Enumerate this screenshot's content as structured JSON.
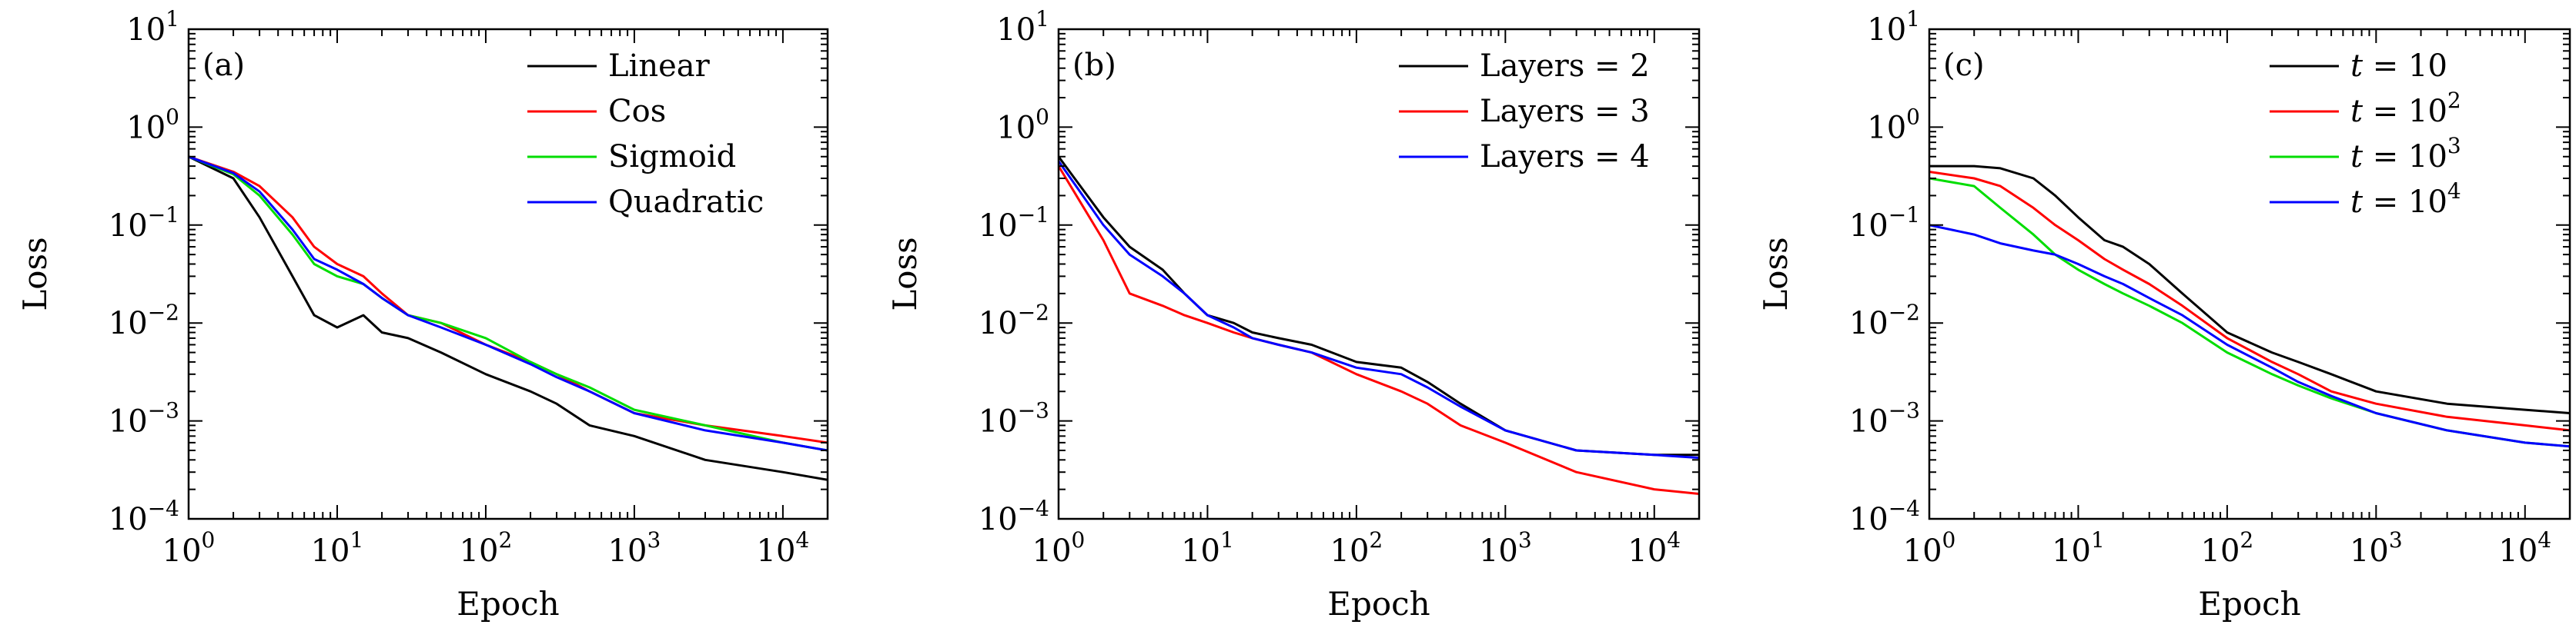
{
  "figure": {
    "panels_count": 3
  },
  "chart_data": [
    {
      "type": "line",
      "panel_label": "(a)",
      "xlabel": "Epoch",
      "ylabel": "Loss",
      "xscale": "log",
      "yscale": "log",
      "xlim": [
        1,
        20000
      ],
      "ylim": [
        0.0001,
        10
      ],
      "x_ticks": [
        {
          "base": "10",
          "exp": "0",
          "value": 1
        },
        {
          "base": "10",
          "exp": "1",
          "value": 10
        },
        {
          "base": "10",
          "exp": "2",
          "value": 100
        },
        {
          "base": "10",
          "exp": "3",
          "value": 1000
        },
        {
          "base": "10",
          "exp": "4",
          "value": 10000
        }
      ],
      "y_ticks": [
        {
          "base": "10",
          "exp": "−4",
          "value": 0.0001
        },
        {
          "base": "10",
          "exp": "−3",
          "value": 0.001
        },
        {
          "base": "10",
          "exp": "−2",
          "value": 0.01
        },
        {
          "base": "10",
          "exp": "−1",
          "value": 0.1
        },
        {
          "base": "10",
          "exp": "0",
          "value": 1
        },
        {
          "base": "10",
          "exp": "1",
          "value": 10
        }
      ],
      "legend_position": "top-right",
      "series": [
        {
          "name": "Linear",
          "color": "#000000",
          "x": [
            1,
            2,
            3,
            5,
            7,
            10,
            15,
            20,
            30,
            50,
            100,
            200,
            300,
            500,
            1000,
            3000,
            10000,
            20000
          ],
          "y": [
            0.5,
            0.3,
            0.12,
            0.03,
            0.012,
            0.009,
            0.012,
            0.008,
            0.007,
            0.005,
            0.003,
            0.002,
            0.0015,
            0.0009,
            0.0007,
            0.0004,
            0.0003,
            0.00025
          ]
        },
        {
          "name": "Cos",
          "color": "#ff0000",
          "x": [
            1,
            2,
            3,
            5,
            7,
            10,
            15,
            20,
            30,
            50,
            100,
            200,
            300,
            500,
            1000,
            3000,
            10000,
            20000
          ],
          "y": [
            0.5,
            0.35,
            0.25,
            0.12,
            0.06,
            0.04,
            0.03,
            0.02,
            0.012,
            0.01,
            0.006,
            0.004,
            0.003,
            0.002,
            0.0012,
            0.0009,
            0.0007,
            0.0006
          ]
        },
        {
          "name": "Sigmoid",
          "color": "#00dd00",
          "x": [
            1,
            2,
            3,
            5,
            7,
            10,
            15,
            20,
            30,
            50,
            100,
            200,
            300,
            500,
            1000,
            3000,
            10000,
            20000
          ],
          "y": [
            0.5,
            0.33,
            0.2,
            0.08,
            0.04,
            0.03,
            0.025,
            0.018,
            0.012,
            0.01,
            0.007,
            0.004,
            0.003,
            0.0022,
            0.0013,
            0.0009,
            0.0006,
            0.0005
          ]
        },
        {
          "name": "Quadratic",
          "color": "#0000ff",
          "x": [
            1,
            2,
            3,
            5,
            7,
            10,
            15,
            20,
            30,
            50,
            100,
            200,
            300,
            500,
            1000,
            3000,
            10000,
            20000
          ],
          "y": [
            0.5,
            0.34,
            0.22,
            0.09,
            0.045,
            0.035,
            0.025,
            0.018,
            0.012,
            0.009,
            0.006,
            0.0038,
            0.0028,
            0.002,
            0.0012,
            0.0008,
            0.0006,
            0.0005
          ]
        }
      ]
    },
    {
      "type": "line",
      "panel_label": "(b)",
      "xlabel": "Epoch",
      "ylabel": "Loss",
      "xscale": "log",
      "yscale": "log",
      "xlim": [
        1,
        20000
      ],
      "ylim": [
        0.0001,
        10
      ],
      "x_ticks": [
        {
          "base": "10",
          "exp": "0",
          "value": 1
        },
        {
          "base": "10",
          "exp": "1",
          "value": 10
        },
        {
          "base": "10",
          "exp": "2",
          "value": 100
        },
        {
          "base": "10",
          "exp": "3",
          "value": 1000
        },
        {
          "base": "10",
          "exp": "4",
          "value": 10000
        }
      ],
      "y_ticks": [
        {
          "base": "10",
          "exp": "−4",
          "value": 0.0001
        },
        {
          "base": "10",
          "exp": "−3",
          "value": 0.001
        },
        {
          "base": "10",
          "exp": "−2",
          "value": 0.01
        },
        {
          "base": "10",
          "exp": "−1",
          "value": 0.1
        },
        {
          "base": "10",
          "exp": "0",
          "value": 1
        },
        {
          "base": "10",
          "exp": "1",
          "value": 10
        }
      ],
      "legend_position": "top-right",
      "series": [
        {
          "name": "Layers = 2",
          "color": "#000000",
          "x": [
            1,
            2,
            3,
            5,
            7,
            10,
            15,
            20,
            30,
            50,
            100,
            200,
            300,
            500,
            1000,
            3000,
            10000,
            20000
          ],
          "y": [
            0.5,
            0.12,
            0.06,
            0.035,
            0.02,
            0.012,
            0.01,
            0.008,
            0.007,
            0.006,
            0.004,
            0.0035,
            0.0025,
            0.0015,
            0.0008,
            0.0005,
            0.00045,
            0.00045
          ]
        },
        {
          "name": "Layers = 3",
          "color": "#ff0000",
          "x": [
            1,
            2,
            3,
            5,
            7,
            10,
            15,
            20,
            30,
            50,
            100,
            200,
            300,
            500,
            1000,
            3000,
            10000,
            20000
          ],
          "y": [
            0.4,
            0.07,
            0.02,
            0.015,
            0.012,
            0.01,
            0.008,
            0.007,
            0.006,
            0.005,
            0.003,
            0.002,
            0.0015,
            0.0009,
            0.0006,
            0.0003,
            0.0002,
            0.00018
          ]
        },
        {
          "name": "Layers = 4",
          "color": "#0000ff",
          "x": [
            1,
            2,
            3,
            5,
            7,
            10,
            15,
            20,
            30,
            50,
            100,
            200,
            300,
            500,
            1000,
            3000,
            10000,
            20000
          ],
          "y": [
            0.45,
            0.1,
            0.05,
            0.03,
            0.02,
            0.012,
            0.009,
            0.007,
            0.006,
            0.005,
            0.0035,
            0.003,
            0.0022,
            0.0014,
            0.0008,
            0.0005,
            0.00045,
            0.00042
          ]
        }
      ]
    },
    {
      "type": "line",
      "panel_label": "(c)",
      "xlabel": "Epoch",
      "ylabel": "Loss",
      "xscale": "log",
      "yscale": "log",
      "xlim": [
        1,
        20000
      ],
      "ylim": [
        0.0001,
        10
      ],
      "x_ticks": [
        {
          "base": "10",
          "exp": "0",
          "value": 1
        },
        {
          "base": "10",
          "exp": "1",
          "value": 10
        },
        {
          "base": "10",
          "exp": "2",
          "value": 100
        },
        {
          "base": "10",
          "exp": "3",
          "value": 1000
        },
        {
          "base": "10",
          "exp": "4",
          "value": 10000
        }
      ],
      "y_ticks": [
        {
          "base": "10",
          "exp": "−4",
          "value": 0.0001
        },
        {
          "base": "10",
          "exp": "−3",
          "value": 0.001
        },
        {
          "base": "10",
          "exp": "−2",
          "value": 0.01
        },
        {
          "base": "10",
          "exp": "−1",
          "value": 0.1
        },
        {
          "base": "10",
          "exp": "0",
          "value": 1
        },
        {
          "base": "10",
          "exp": "1",
          "value": 10
        }
      ],
      "legend_position": "top-right",
      "series": [
        {
          "name": "t = 10",
          "legend_var": "t",
          "legend_base": "10",
          "legend_exp": "",
          "color": "#000000",
          "x": [
            1,
            2,
            3,
            5,
            7,
            10,
            15,
            20,
            30,
            50,
            100,
            200,
            300,
            500,
            1000,
            3000,
            10000,
            20000
          ],
          "y": [
            0.4,
            0.4,
            0.38,
            0.3,
            0.2,
            0.12,
            0.07,
            0.06,
            0.04,
            0.02,
            0.008,
            0.005,
            0.004,
            0.003,
            0.002,
            0.0015,
            0.0013,
            0.0012
          ]
        },
        {
          "name": "t = 10^2",
          "legend_var": "t",
          "legend_base": "10",
          "legend_exp": "2",
          "color": "#ff0000",
          "x": [
            1,
            2,
            3,
            5,
            7,
            10,
            15,
            20,
            30,
            50,
            100,
            200,
            300,
            500,
            1000,
            3000,
            10000,
            20000
          ],
          "y": [
            0.35,
            0.3,
            0.25,
            0.15,
            0.1,
            0.07,
            0.045,
            0.035,
            0.025,
            0.015,
            0.007,
            0.004,
            0.003,
            0.002,
            0.0015,
            0.0011,
            0.0009,
            0.0008
          ]
        },
        {
          "name": "t = 10^3",
          "legend_var": "t",
          "legend_base": "10",
          "legend_exp": "3",
          "color": "#00dd00",
          "x": [
            1,
            2,
            3,
            5,
            7,
            10,
            15,
            20,
            30,
            50,
            100,
            200,
            300,
            500,
            1000,
            3000,
            10000,
            20000
          ],
          "y": [
            0.3,
            0.25,
            0.15,
            0.08,
            0.05,
            0.035,
            0.025,
            0.02,
            0.015,
            0.01,
            0.005,
            0.003,
            0.0023,
            0.0017,
            0.0012,
            0.0008,
            0.0006,
            0.00055
          ]
        },
        {
          "name": "t = 10^4",
          "legend_var": "t",
          "legend_base": "10",
          "legend_exp": "4",
          "color": "#0000ff",
          "x": [
            1,
            2,
            3,
            5,
            7,
            10,
            15,
            20,
            30,
            50,
            100,
            200,
            300,
            500,
            1000,
            3000,
            10000,
            20000
          ],
          "y": [
            0.1,
            0.08,
            0.065,
            0.055,
            0.05,
            0.04,
            0.03,
            0.025,
            0.018,
            0.012,
            0.006,
            0.0035,
            0.0025,
            0.0018,
            0.0012,
            0.0008,
            0.0006,
            0.00055
          ]
        }
      ]
    }
  ]
}
